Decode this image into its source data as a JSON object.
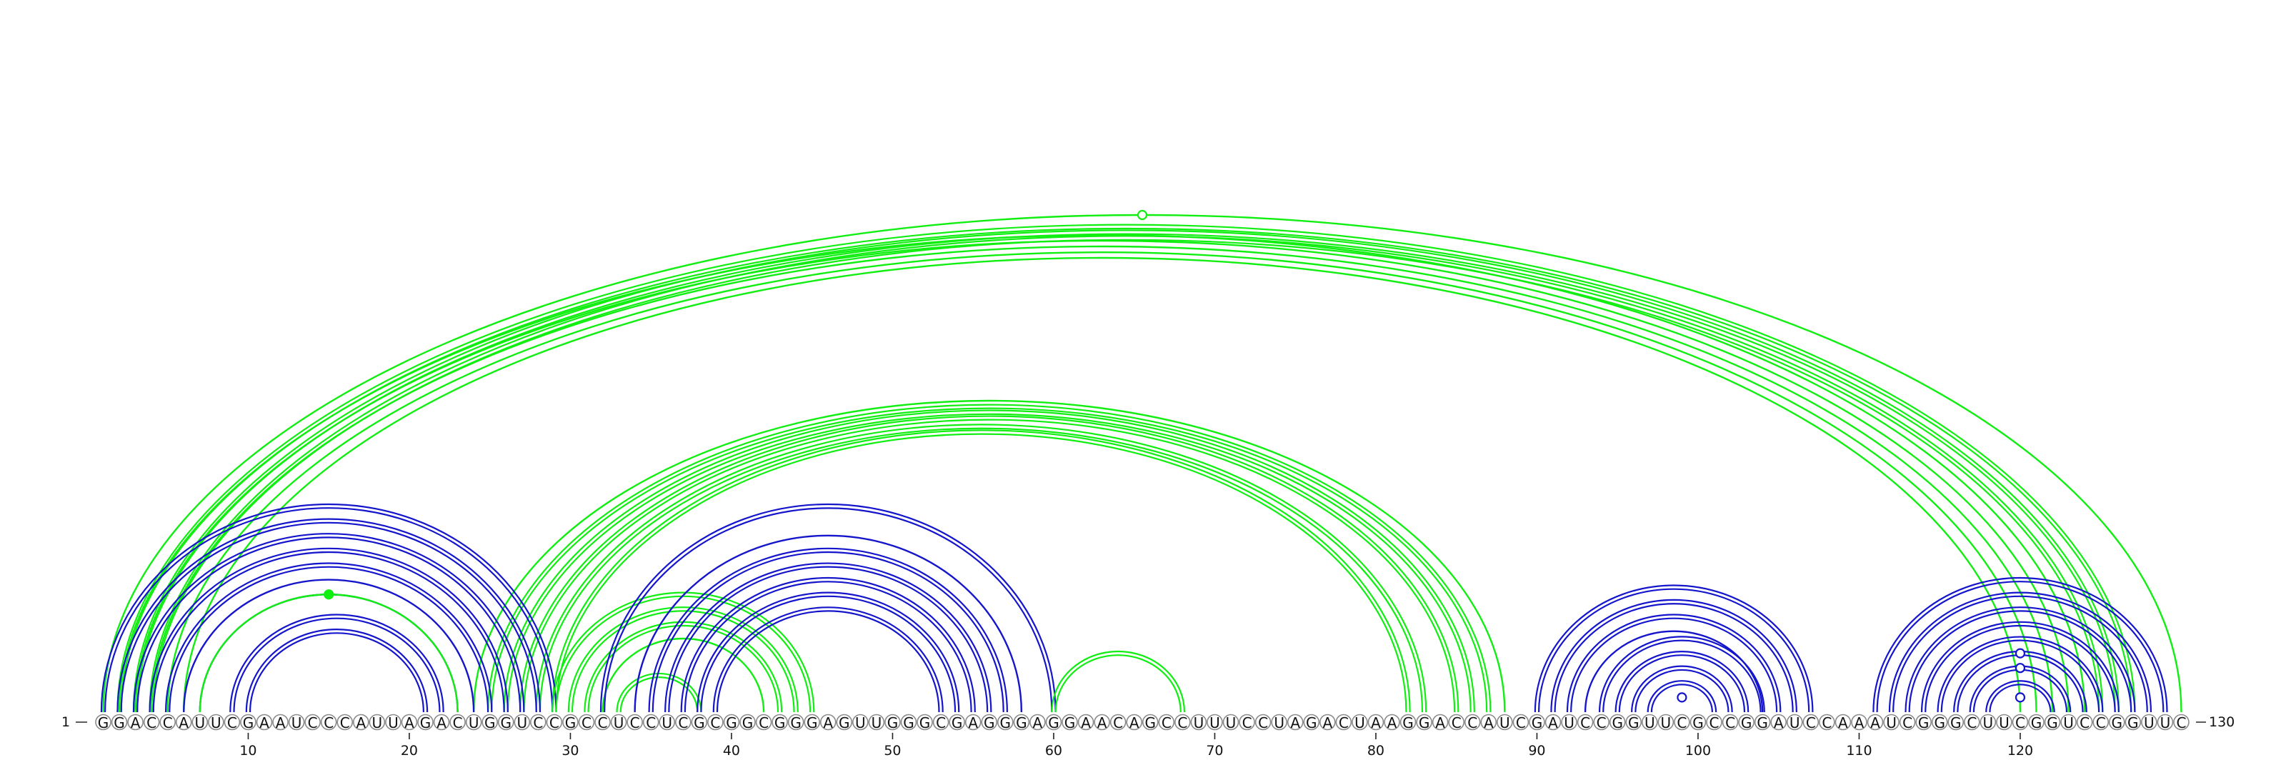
{
  "sequence": "GGACCAUUCGAAUCCCAUUAGACUGGUCCGCCUCCUCGCGGCGGGAGUUGGGCGAGGGAGGAACAGCCUUUCCUAGACUAAGGACCAUCGAUCCGGUUCGCCGGAUCCAAAUCGGGCUUCGGUCCGGUUC",
  "length": 130,
  "start_label": "1",
  "end_label": "130",
  "ticks": [
    "10",
    "20",
    "30",
    "40",
    "50",
    "60",
    "70",
    "80",
    "90",
    "100",
    "110",
    "120"
  ],
  "colors": {
    "green": "#11ee11",
    "blue": "#1515cc"
  },
  "arc_groups": [
    {
      "color": "green",
      "style": "single",
      "pairs": [
        [
          1,
          130
        ],
        [
          2,
          124
        ],
        [
          3,
          123
        ],
        [
          4,
          122
        ],
        [
          5,
          121
        ],
        [
          6,
          120
        ]
      ]
    },
    {
      "color": "green",
      "style": "double",
      "pairs": [
        [
          2,
          127
        ],
        [
          3,
          126
        ],
        [
          4,
          125
        ]
      ]
    },
    {
      "color": "green",
      "style": "marker-open",
      "marker_pair": [
        1,
        130
      ]
    },
    {
      "color": "green",
      "style": "double",
      "pairs": [
        [
          25,
          87
        ],
        [
          26,
          86
        ],
        [
          27,
          85
        ],
        [
          28,
          83
        ],
        [
          29,
          82
        ]
      ]
    },
    {
      "color": "green",
      "style": "single",
      "pairs": [
        [
          24,
          88
        ]
      ]
    },
    {
      "color": "blue",
      "style": "double",
      "pairs": [
        [
          1,
          29
        ],
        [
          2,
          28
        ],
        [
          3,
          27
        ],
        [
          4,
          26
        ],
        [
          5,
          25
        ]
      ]
    },
    {
      "color": "blue",
      "style": "single",
      "pairs": [
        [
          6,
          24
        ],
        [
          7,
          23
        ]
      ]
    },
    {
      "color": "blue",
      "style": "double",
      "pairs": [
        [
          9,
          22
        ],
        [
          10,
          21
        ]
      ]
    },
    {
      "color": "green",
      "style": "single",
      "pairs": [
        [
          7,
          23
        ]
      ]
    },
    {
      "color": "green",
      "style": "marker-filled",
      "marker_pair": [
        7,
        23
      ]
    },
    {
      "color": "green",
      "style": "double",
      "pairs": [
        [
          29,
          45
        ],
        [
          30,
          44
        ],
        [
          31,
          43
        ],
        [
          33,
          38
        ]
      ]
    },
    {
      "color": "green",
      "style": "single",
      "pairs": [
        [
          32,
          42
        ]
      ]
    },
    {
      "color": "blue",
      "style": "double",
      "pairs": [
        [
          32,
          60
        ],
        [
          35,
          57
        ],
        [
          36,
          56
        ],
        [
          37,
          55
        ],
        [
          38,
          54
        ],
        [
          39,
          53
        ]
      ]
    },
    {
      "color": "blue",
      "style": "single",
      "pairs": [
        [
          34,
          58
        ]
      ]
    },
    {
      "color": "green",
      "style": "double",
      "pairs": [
        [
          60,
          68
        ]
      ]
    },
    {
      "color": "blue",
      "style": "double",
      "pairs": [
        [
          90,
          107
        ],
        [
          91,
          106
        ],
        [
          92,
          105
        ],
        [
          94,
          104
        ],
        [
          95,
          103
        ],
        [
          96,
          102
        ],
        [
          97,
          101
        ]
      ]
    },
    {
      "color": "blue",
      "style": "single",
      "pairs": [
        [
          93,
          104
        ]
      ]
    },
    {
      "color": "blue",
      "style": "marker-open",
      "marker_pair": [
        98,
        100
      ]
    },
    {
      "color": "blue",
      "style": "double",
      "pairs": [
        [
          111,
          129
        ],
        [
          112,
          128
        ],
        [
          113,
          127
        ],
        [
          114,
          126
        ],
        [
          115,
          125
        ],
        [
          116,
          124
        ],
        [
          117,
          123
        ],
        [
          118,
          122
        ]
      ]
    },
    {
      "color": "blue",
      "style": "marker-open",
      "marker_pair": [
        116,
        124
      ]
    },
    {
      "color": "blue",
      "style": "marker-open",
      "marker_pair": [
        117,
        123
      ]
    },
    {
      "color": "blue",
      "style": "marker-open",
      "marker_pair": [
        119,
        121
      ]
    }
  ]
}
